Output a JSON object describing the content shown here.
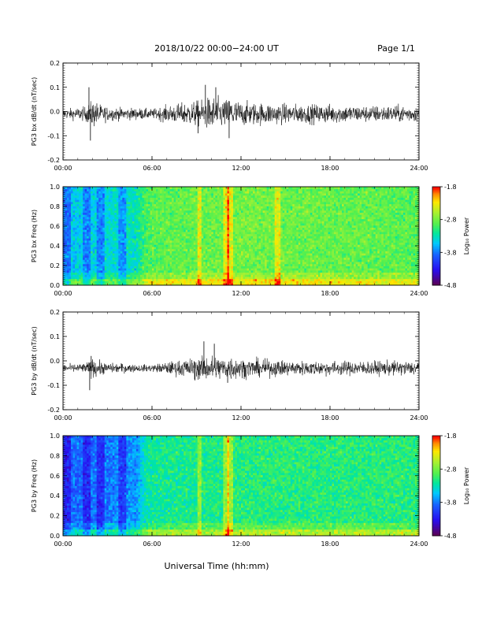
{
  "header": {
    "title": "2018/10/22  00:00−24:00 UT",
    "page": "Page 1/1"
  },
  "x_axis": {
    "ticks": [
      "00:00",
      "06:00",
      "12:00",
      "18:00",
      "24:00"
    ],
    "label": "Universal Time (hh:mm)"
  },
  "colorbar": {
    "label": "Log₁₀ Power",
    "ticks": [
      "-1.8",
      "-2.8",
      "-3.8",
      "-4.8"
    ],
    "colors": [
      "#5a005a",
      "#2a0ff0",
      "#1a60ff",
      "#00c8ff",
      "#00e8a0",
      "#50f050",
      "#a8f030",
      "#ffe800",
      "#ff8c00",
      "#ff0000"
    ]
  },
  "chart_data": [
    {
      "type": "line",
      "ylabel": "PG3 bx dB/dt (nT/sec)",
      "xlim": [
        0,
        24
      ],
      "ylim": [
        -0.2,
        0.2
      ],
      "yticks": [
        "0.2",
        "0.1",
        "0.0",
        "-0.1",
        "-0.2"
      ],
      "baseline": -0.01,
      "envelope": {
        "hours": [
          0,
          1.5,
          2,
          2.5,
          3,
          4,
          5,
          6,
          7,
          8,
          9,
          9.5,
          10,
          11,
          11.2,
          12,
          14,
          16,
          18,
          20,
          22,
          24
        ],
        "amplitude": [
          0.02,
          0.03,
          0.06,
          0.04,
          0.03,
          0.025,
          0.025,
          0.02,
          0.035,
          0.045,
          0.055,
          0.06,
          0.075,
          0.06,
          0.075,
          0.05,
          0.045,
          0.04,
          0.04,
          0.035,
          0.035,
          0.035
        ]
      },
      "spikes": [
        {
          "hour": 1.75,
          "value": 0.1
        },
        {
          "hour": 1.85,
          "value": -0.12
        },
        {
          "hour": 9.6,
          "value": 0.11
        },
        {
          "hour": 10.3,
          "value": 0.1
        },
        {
          "hour": 11.2,
          "value": -0.11
        },
        {
          "hour": 9.1,
          "value": -0.09
        }
      ]
    },
    {
      "type": "heatmap",
      "ylabel": "PG3 bx Freq (Hz)",
      "xlim": [
        0,
        24
      ],
      "ylim": [
        0,
        1.0
      ],
      "yticks": [
        "1.0",
        "0.8",
        "0.6",
        "0.4",
        "0.2",
        "0.0"
      ],
      "zlim": [
        -4.8,
        -1.8
      ],
      "background_level": {
        "hours": [
          0,
          3,
          5,
          5.5,
          6,
          12,
          24
        ],
        "log_power": [
          -3.5,
          -3.4,
          -3.3,
          -3.0,
          -2.9,
          -2.8,
          -2.9
        ]
      },
      "bright_bands_hours": [
        9.2,
        11.0,
        11.3,
        14.5
      ],
      "dark_strip_hours": [
        0.3,
        1.6,
        2.5,
        4.0
      ]
    },
    {
      "type": "line",
      "ylabel": "PG3 by dB/dt (nT/sec)",
      "xlim": [
        0,
        24
      ],
      "ylim": [
        -0.2,
        0.2
      ],
      "yticks": [
        "0.2",
        "0.1",
        "0.0",
        "-0.1",
        "-0.2"
      ],
      "baseline": -0.03,
      "envelope": {
        "hours": [
          0,
          1.5,
          2,
          2.5,
          3,
          4,
          5,
          6,
          7,
          8,
          9,
          9.5,
          10,
          11,
          11.2,
          12,
          14,
          16,
          18,
          20,
          22,
          24
        ],
        "amplitude": [
          0.015,
          0.02,
          0.04,
          0.03,
          0.02,
          0.02,
          0.015,
          0.015,
          0.025,
          0.035,
          0.045,
          0.05,
          0.055,
          0.045,
          0.055,
          0.04,
          0.035,
          0.03,
          0.03,
          0.03,
          0.03,
          0.03
        ]
      },
      "spikes": [
        {
          "hour": 1.8,
          "value": -0.12
        },
        {
          "hour": 1.9,
          "value": 0.02
        },
        {
          "hour": 9.5,
          "value": 0.08
        },
        {
          "hour": 10.2,
          "value": 0.07
        },
        {
          "hour": 11.1,
          "value": -0.09
        },
        {
          "hour": 8.9,
          "value": -0.08
        }
      ]
    },
    {
      "type": "heatmap",
      "ylabel": "PG3 by Freq (Hz)",
      "xlim": [
        0,
        24
      ],
      "ylim": [
        0,
        1.0
      ],
      "yticks": [
        "1.0",
        "0.8",
        "0.6",
        "0.4",
        "0.2",
        "0.0"
      ],
      "zlim": [
        -4.8,
        -1.8
      ],
      "background_level": {
        "hours": [
          0,
          3,
          5,
          5.5,
          6,
          12,
          24
        ],
        "log_power": [
          -3.9,
          -3.8,
          -3.7,
          -3.3,
          -3.2,
          -3.1,
          -3.1
        ]
      },
      "bright_bands_hours": [
        9.2,
        11.0,
        11.3
      ],
      "dark_strip_hours": [
        0.3,
        1.6,
        2.5,
        4.0
      ]
    }
  ]
}
